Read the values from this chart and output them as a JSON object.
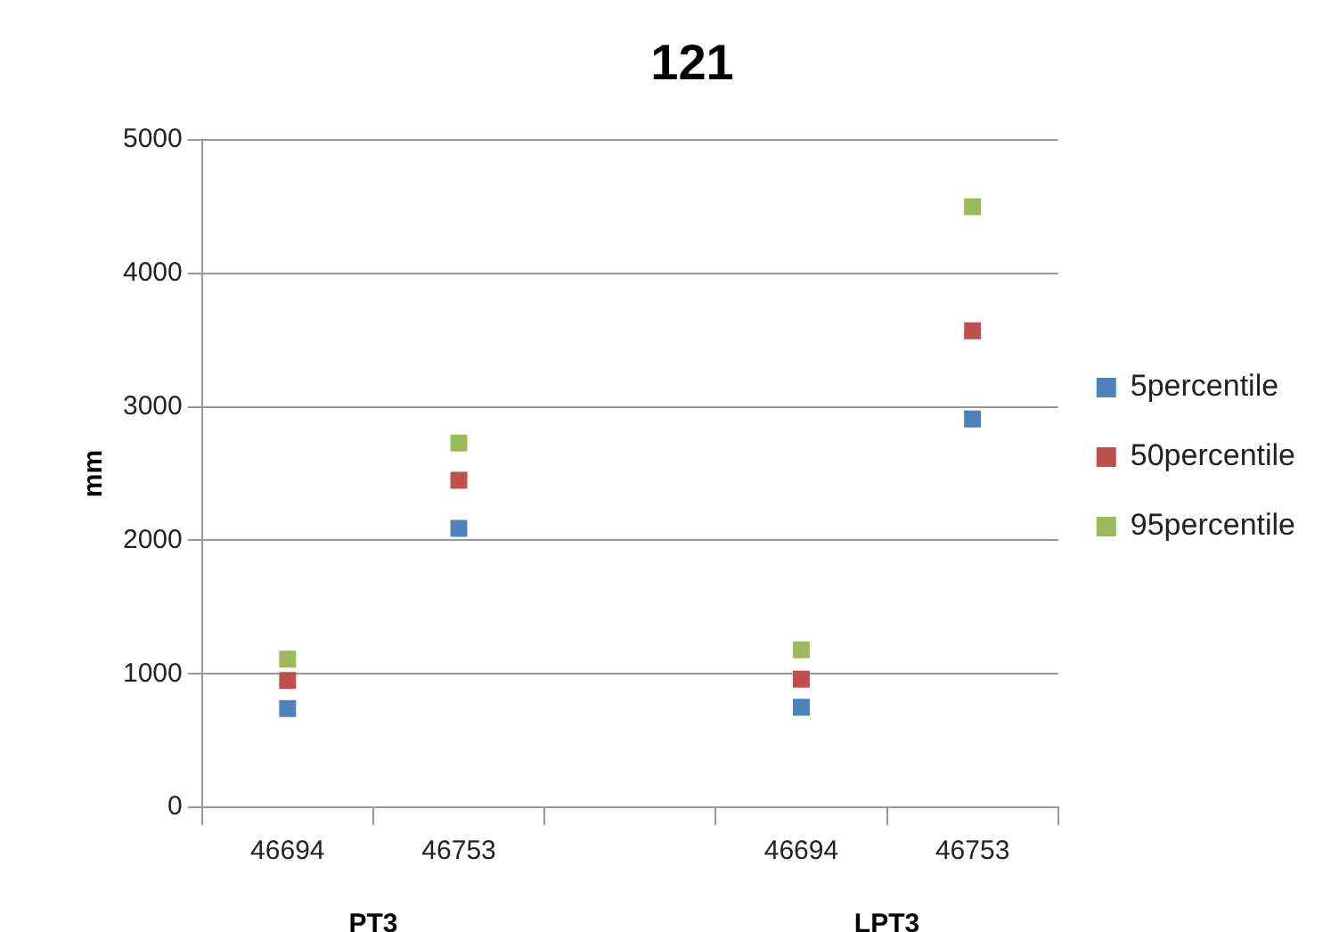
{
  "chart_data": {
    "type": "scatter",
    "title": "121",
    "ylabel": "mm",
    "marker": "square",
    "categories": [
      "46694",
      "46753",
      null,
      "46694",
      "46753"
    ],
    "series": [
      {
        "name": "5percentile",
        "color": "#4f81bd",
        "values": [
          740,
          2090,
          null,
          750,
          2910
        ]
      },
      {
        "name": "50percentile",
        "color": "#c0504d",
        "values": [
          950,
          2450,
          null,
          960,
          3570
        ]
      },
      {
        "name": "95percentile",
        "color": "#9bbb59",
        "values": [
          1110,
          2730,
          null,
          1180,
          4500
        ]
      }
    ],
    "ylim": [
      0,
      5000
    ],
    "yticks": [
      0,
      1000,
      2000,
      3000,
      4000,
      5000
    ],
    "grid": "y",
    "legend": "right",
    "annotations": [
      "PT3",
      "LPT3"
    ]
  }
}
